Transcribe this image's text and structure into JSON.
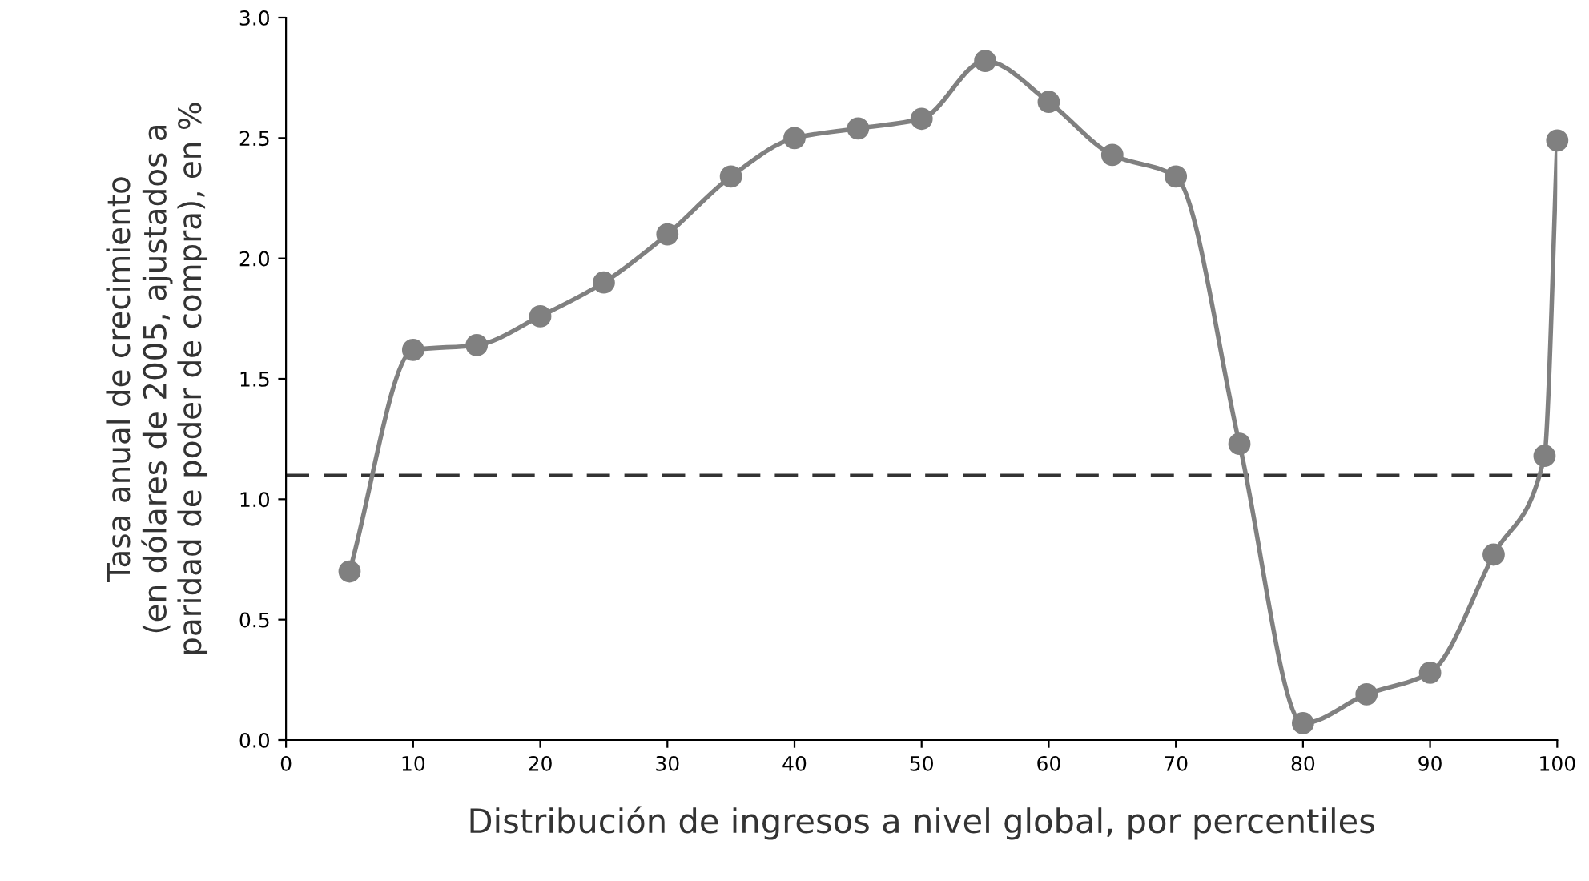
{
  "chart_data": {
    "type": "line",
    "xlabel": "Distribución de ingresos a nivel global, por percentiles",
    "ylabel": "Tasa anual de crecimiento\n(en dólares de 2005, ajustados a\nparidad de poder de compra), en %",
    "x": [
      5,
      10,
      15,
      20,
      25,
      30,
      35,
      40,
      45,
      50,
      55,
      60,
      65,
      70,
      75,
      80,
      85,
      90,
      95,
      99,
      100
    ],
    "series": [
      {
        "color": "#808080",
        "values": [
          0.7,
          1.62,
          1.64,
          1.76,
          1.9,
          2.1,
          2.34,
          2.5,
          2.54,
          2.58,
          2.82,
          2.65,
          2.43,
          2.34,
          1.23,
          0.07,
          0.19,
          0.28,
          0.77,
          1.18,
          2.49
        ]
      }
    ],
    "xlim": [
      0,
      100
    ],
    "xticks": [
      0,
      10,
      20,
      30,
      40,
      50,
      60,
      70,
      80,
      90,
      100
    ],
    "ylim": [
      0,
      3.0
    ],
    "yticks": [
      {
        "value": 0,
        "label": "0.0"
      },
      {
        "value": 0.5,
        "label": "0.5"
      },
      {
        "value": 1.0,
        "label": "1.0"
      },
      {
        "value": 1.5,
        "label": "1.5"
      },
      {
        "value": 2.0,
        "label": "2.0"
      },
      {
        "value": 2.5,
        "label": "2.5"
      },
      {
        "value": 3.0,
        "label": "3.0"
      }
    ],
    "ref_lines": [
      {
        "axis": "y",
        "value": 1.1,
        "color": "#333333",
        "line_style": "dashed"
      }
    ],
    "marker": "circle",
    "line_style": "solid",
    "grid": false
  }
}
